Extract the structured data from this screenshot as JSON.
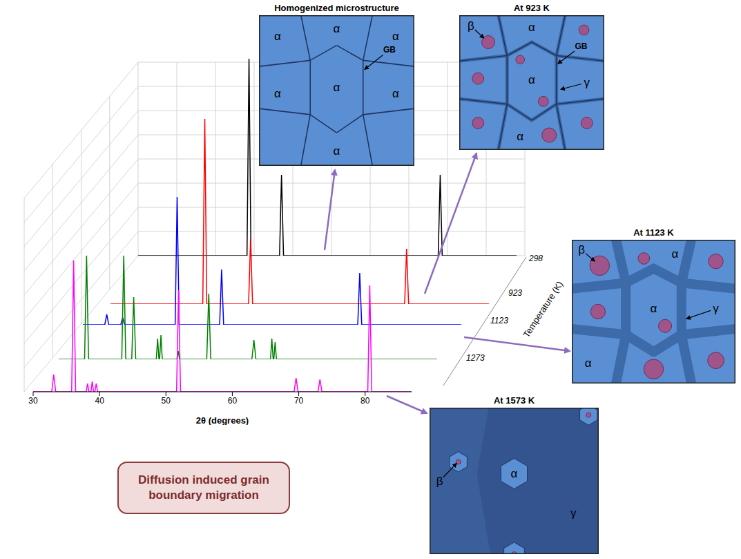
{
  "chart_data": {
    "type": "line",
    "xlabel": "2θ (degrees)",
    "zlabel": "Temperature (K)",
    "xlim": [
      30,
      87
    ],
    "xticks": [
      30,
      40,
      50,
      60,
      70,
      80
    ],
    "ylim": [
      0,
      300
    ],
    "tick_labels": "x",
    "series": [
      {
        "name": "298",
        "color": "#000000",
        "x": [
          30,
          46.4,
          46.7,
          47.0,
          51.3,
          51.6,
          51.9,
          75.2,
          75.5,
          75.8,
          87
        ],
        "values": [
          0,
          0,
          285,
          0,
          0,
          117,
          0,
          0,
          117,
          0,
          0
        ]
      },
      {
        "name": "923",
        "color": "#ff0000",
        "x": [
          30,
          43.9,
          44.2,
          44.5,
          50.8,
          51.1,
          51.4,
          74.3,
          74.6,
          74.9,
          87
        ],
        "values": [
          0,
          0,
          268,
          0,
          0,
          95,
          0,
          0,
          80,
          0,
          0
        ]
      },
      {
        "name": "1123",
        "color": "#0000ff",
        "x": [
          30,
          33.3,
          33.6,
          33.9,
          35.7,
          36.0,
          36.3,
          43.9,
          44.2,
          44.5,
          50.6,
          50.9,
          51.2,
          71.4,
          71.7,
          72.0,
          87
        ],
        "values": [
          0,
          0,
          15,
          0,
          0,
          10,
          0,
          0,
          185,
          0,
          0,
          80,
          0,
          0,
          75,
          0,
          0
        ]
      },
      {
        "name": "1273",
        "color": "#008000",
        "x": [
          30,
          33.9,
          34.2,
          34.5,
          39.5,
          39.8,
          40.1,
          41.0,
          41.3,
          41.6,
          44.7,
          44.9,
          45.1,
          45.2,
          45.4,
          45.6,
          47.8,
          48.0,
          48.2,
          52.3,
          52.6,
          52.9,
          59.1,
          59.4,
          59.7,
          61.9,
          62.1,
          62.3,
          62.4,
          62.6,
          62.8,
          87
        ],
        "values": [
          0,
          0,
          150,
          0,
          0,
          150,
          0,
          0,
          90,
          0,
          0,
          30,
          0,
          0,
          35,
          0,
          0,
          12,
          0,
          0,
          95,
          0,
          0,
          28,
          0,
          0,
          30,
          0,
          0,
          25,
          0,
          0
        ]
      },
      {
        "color": "#ff00ff",
        "x": [
          30,
          32.8,
          33.1,
          33.4,
          35.8,
          36.1,
          36.4,
          38.0,
          38.2,
          38.4,
          38.7,
          38.9,
          39.1,
          39.3,
          39.5,
          39.7,
          51.6,
          51.9,
          52.2,
          69.3,
          69.6,
          69.9,
          72.9,
          73.2,
          73.5,
          80.4,
          80.7,
          81.0,
          87
        ],
        "values": [
          0,
          0,
          25,
          0,
          0,
          190,
          0,
          0,
          12,
          0,
          0,
          15,
          0,
          0,
          12,
          0,
          0,
          147,
          0,
          0,
          20,
          0,
          0,
          18,
          0,
          0,
          154,
          0,
          0
        ]
      }
    ]
  },
  "diagram": {
    "panels": [
      {
        "title": "Homogenized microstructure",
        "labels": [
          "α",
          "α",
          "α",
          "α",
          "α",
          "α",
          "α",
          "GB"
        ]
      },
      {
        "title": "At 923 K",
        "labels": [
          "β",
          "α",
          "α",
          "α",
          "GB",
          "γ"
        ]
      },
      {
        "title": "At 1123 K",
        "labels": [
          "β",
          "α",
          "α",
          "α",
          "γ"
        ]
      },
      {
        "title": "At 1573 K",
        "labels": [
          "β",
          "α",
          "γ"
        ]
      }
    ],
    "caption": "Diffusion induced grain boundary migration"
  }
}
